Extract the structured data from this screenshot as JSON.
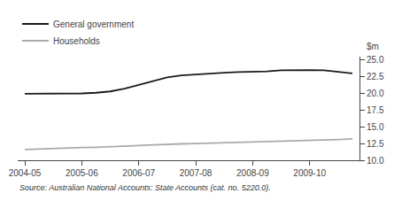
{
  "chart_data": {
    "type": "line",
    "categories": [
      "2004-05",
      null,
      null,
      null,
      "2005-06",
      null,
      null,
      null,
      "2006-07",
      null,
      null,
      null,
      "2007-08",
      null,
      null,
      null,
      "2008-09",
      null,
      null,
      null,
      "2009-10",
      null,
      null,
      null
    ],
    "series": [
      {
        "name": "General government",
        "color": "#1a1a1a",
        "values": [
          19.95,
          19.95,
          19.95,
          19.98,
          20.0,
          20.1,
          20.3,
          20.7,
          21.3,
          21.9,
          22.4,
          22.7,
          22.85,
          23.0,
          23.1,
          23.2,
          23.25,
          23.3,
          23.45,
          23.5,
          23.5,
          23.45,
          23.2,
          23.0
        ]
      },
      {
        "name": "Households",
        "color": "#aaaaaa",
        "values": [
          11.6,
          11.7,
          11.8,
          11.85,
          11.9,
          11.95,
          12.0,
          12.1,
          12.2,
          12.3,
          12.4,
          12.45,
          12.5,
          12.55,
          12.65,
          12.7,
          12.75,
          12.8,
          12.85,
          12.9,
          12.95,
          13.0,
          13.1,
          13.2
        ]
      }
    ],
    "ylabel": "$m",
    "ylim": [
      10.0,
      25.5
    ],
    "yticks": [
      {
        "value": 10.0,
        "label": "10.0"
      },
      12.5,
      {
        "value": 15.0,
        "label": "15.0"
      },
      17.5,
      {
        "value": 20.0,
        "label": "20.0"
      },
      22.5,
      {
        "value": 25.0,
        "label": "25.0"
      }
    ],
    "grid": false,
    "legend": "top left",
    "annotations": [
      "Source: Australian National Accounts: State Accounts (cat. no. 5220.0)."
    ]
  }
}
